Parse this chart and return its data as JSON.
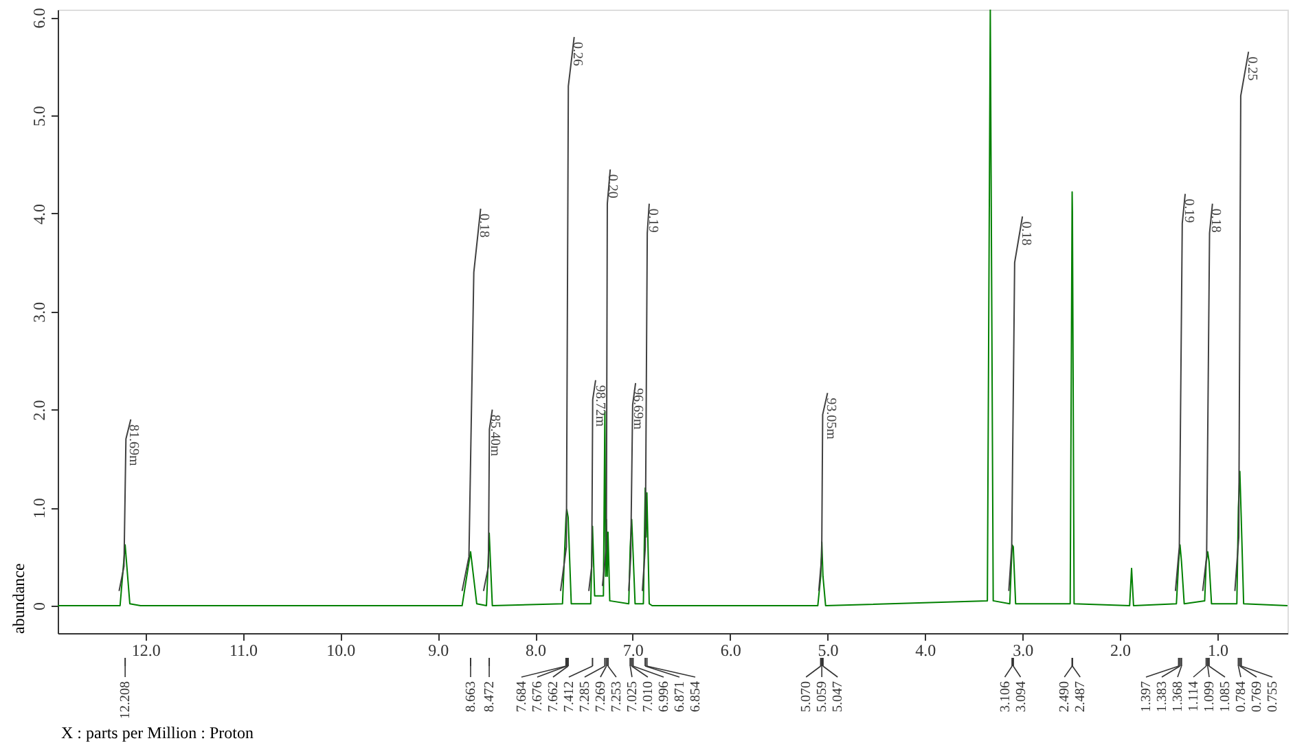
{
  "chart_data": {
    "type": "line",
    "xlabel": "X : parts per Million : Proton",
    "ylabel": "abundance",
    "xlim": [
      12.9,
      0.28
    ],
    "ylim": [
      -0.28,
      6.08
    ],
    "xticks": [
      {
        "value": 12,
        "label": "12.0"
      },
      {
        "value": 11,
        "label": "11.0"
      },
      {
        "value": 10,
        "label": "10.0"
      },
      {
        "value": 9,
        "label": "9.0"
      },
      {
        "value": 8,
        "label": "8.0"
      },
      {
        "value": 7,
        "label": "7.0"
      },
      {
        "value": 6,
        "label": "6.0"
      },
      {
        "value": 5,
        "label": "5.0"
      },
      {
        "value": 4,
        "label": "4.0"
      },
      {
        "value": 3,
        "label": "3.0"
      },
      {
        "value": 2,
        "label": "2.0"
      },
      {
        "value": 1,
        "label": "1.0"
      }
    ],
    "yticks": [
      0,
      {
        "value": 1,
        "label": "1.0"
      },
      {
        "value": 2,
        "label": "2.0"
      },
      {
        "value": 3,
        "label": "3.0"
      },
      {
        "value": 4,
        "label": "4.0"
      },
      {
        "value": 5,
        "label": "5.0"
      },
      {
        "value": 6,
        "label": "6.0"
      }
    ],
    "grid": false,
    "marker": "none",
    "line_style": "solid",
    "series": [
      {
        "color": "#008000",
        "x": [
          12.9,
          12.26,
          12.208,
          12.16,
          12.05,
          8.75,
          8.663,
          8.6,
          8.5,
          8.472,
          8.44,
          7.72,
          7.684,
          7.676,
          7.662,
          7.63,
          7.43,
          7.412,
          7.39,
          7.3,
          7.285,
          7.277,
          7.269,
          7.261,
          7.253,
          7.235,
          7.04,
          7.025,
          7.01,
          6.996,
          6.975,
          6.89,
          6.871,
          6.862,
          6.854,
          6.83,
          6.8,
          5.1,
          5.07,
          5.059,
          5.047,
          5.02,
          3.36,
          3.33,
          3.3,
          3.13,
          3.106,
          3.094,
          3.07,
          2.51,
          2.49,
          2.487,
          2.47,
          1.9,
          1.88,
          1.86,
          1.42,
          1.397,
          1.383,
          1.368,
          1.34,
          1.13,
          1.114,
          1.099,
          1.085,
          1.06,
          0.8,
          0.784,
          0.769,
          0.755,
          0.73,
          0.28
        ],
        "values": [
          0,
          0,
          0.62,
          0.02,
          0,
          0,
          0.55,
          0.02,
          0,
          0.74,
          0,
          0.02,
          0.9,
          0.98,
          0.9,
          0.02,
          0.02,
          0.81,
          0.1,
          0.1,
          1.98,
          0.3,
          0.88,
          0.3,
          0.75,
          0.05,
          0.02,
          0.6,
          0.88,
          0.55,
          0.02,
          0.02,
          1.2,
          0.7,
          1.15,
          0.02,
          0,
          0,
          0.3,
          0.65,
          0.3,
          0,
          0.05,
          6.08,
          0.05,
          0.02,
          0.62,
          0.6,
          0.02,
          0.02,
          4.22,
          4.0,
          0.02,
          0,
          0.38,
          0,
          0.02,
          0.45,
          0.62,
          0.45,
          0.02,
          0.05,
          0.45,
          0.55,
          0.45,
          0.02,
          0.02,
          1.0,
          1.37,
          0.9,
          0.02,
          0
        ]
      },
      {
        "color": "#404040",
        "x": [
          12.27,
          12.22,
          12.2,
          12.15
        ],
        "values": [
          0.15,
          0.4,
          1.7,
          1.9
        ]
      },
      {
        "color": "#404040",
        "x": [
          8.75,
          8.68,
          8.63,
          8.56
        ],
        "values": [
          0.15,
          0.5,
          3.4,
          4.05
        ]
      },
      {
        "color": "#404040",
        "x": [
          8.53,
          8.48,
          8.47,
          8.44
        ],
        "values": [
          0.15,
          0.4,
          1.8,
          2.0
        ]
      },
      {
        "color": "#404040",
        "x": [
          7.74,
          7.68,
          7.66,
          7.6
        ],
        "values": [
          0.15,
          0.6,
          5.3,
          5.8
        ]
      },
      {
        "color": "#404040",
        "x": [
          7.45,
          7.42,
          7.41,
          7.38
        ],
        "values": [
          0.15,
          0.4,
          2.1,
          2.3
        ]
      },
      {
        "color": "#404040",
        "x": [
          7.31,
          7.27,
          7.26,
          7.23
        ],
        "values": [
          0.2,
          0.6,
          4.1,
          4.45
        ]
      },
      {
        "color": "#404040",
        "x": [
          7.04,
          7.02,
          7.0,
          6.97
        ],
        "values": [
          0.15,
          0.5,
          2.05,
          2.27
        ]
      },
      {
        "color": "#404040",
        "x": [
          6.9,
          6.87,
          6.85,
          6.83
        ],
        "values": [
          0.15,
          0.6,
          3.8,
          4.1
        ]
      },
      {
        "color": "#404040",
        "x": [
          5.09,
          5.06,
          5.05,
          5.0
        ],
        "values": [
          0.15,
          0.5,
          1.95,
          2.17
        ]
      },
      {
        "color": "#404040",
        "x": [
          3.14,
          3.11,
          3.08,
          3.0
        ],
        "values": [
          0.15,
          0.6,
          3.5,
          3.97
        ]
      },
      {
        "color": "#404040",
        "x": [
          1.43,
          1.39,
          1.36,
          1.33
        ],
        "values": [
          0.15,
          0.6,
          3.9,
          4.2
        ]
      },
      {
        "color": "#404040",
        "x": [
          1.15,
          1.11,
          1.08,
          1.05
        ],
        "values": [
          0.15,
          0.5,
          3.8,
          4.1
        ]
      },
      {
        "color": "#404040",
        "x": [
          0.82,
          0.78,
          0.76,
          0.68
        ],
        "values": [
          0.15,
          0.7,
          5.2,
          5.65
        ]
      }
    ],
    "annotations": [
      {
        "text": "81.69m",
        "x": 12.12,
        "y": 1.85
      },
      {
        "text": "0.18",
        "x": 8.52,
        "y": 4.0
      },
      {
        "text": "85.40m",
        "x": 8.41,
        "y": 1.95
      },
      {
        "text": "0.26",
        "x": 7.56,
        "y": 5.75
      },
      {
        "text": "98.72m",
        "x": 7.33,
        "y": 2.25
      },
      {
        "text": "0.20",
        "x": 7.2,
        "y": 4.4
      },
      {
        "text": "96.69m",
        "x": 6.94,
        "y": 2.22
      },
      {
        "text": "0.19",
        "x": 6.79,
        "y": 4.05
      },
      {
        "text": "93.05m",
        "x": 4.96,
        "y": 2.12
      },
      {
        "text": "0.18",
        "x": 2.96,
        "y": 3.92
      },
      {
        "text": "0.19",
        "x": 1.29,
        "y": 4.15
      },
      {
        "text": "0.18",
        "x": 1.01,
        "y": 4.05
      },
      {
        "text": "0.25",
        "x": 0.64,
        "y": 5.6
      },
      {
        "text": "12.208",
        "x": 12.208
      },
      {
        "text": "8.663",
        "x": 8.663
      },
      {
        "text": "8.472",
        "x": 8.472
      },
      {
        "text": "7.684",
        "x": 7.684
      },
      {
        "text": "7.676",
        "x": 7.676
      },
      {
        "text": "7.662",
        "x": 7.662
      },
      {
        "text": "7.412",
        "x": 7.412
      },
      {
        "text": "7.285",
        "x": 7.285
      },
      {
        "text": "7.269",
        "x": 7.269
      },
      {
        "text": "7.253",
        "x": 7.253
      },
      {
        "text": "7.025",
        "x": 7.025
      },
      {
        "text": "7.010",
        "x": 7.01
      },
      {
        "text": "6.996",
        "x": 6.996
      },
      {
        "text": "6.871",
        "x": 6.871
      },
      {
        "text": "6.854",
        "x": 6.854
      },
      {
        "text": "5.070",
        "x": 5.07
      },
      {
        "text": "5.059",
        "x": 5.059
      },
      {
        "text": "5.047",
        "x": 5.047
      },
      {
        "text": "3.106",
        "x": 3.106
      },
      {
        "text": "3.094",
        "x": 3.094
      },
      {
        "text": "2.490",
        "x": 2.49
      },
      {
        "text": "2.487",
        "x": 2.487
      },
      {
        "text": "1.397",
        "x": 1.397
      },
      {
        "text": "1.383",
        "x": 1.383
      },
      {
        "text": "1.368",
        "x": 1.368
      },
      {
        "text": "1.114",
        "x": 1.114
      },
      {
        "text": "1.099",
        "x": 1.099
      },
      {
        "text": "1.085",
        "x": 1.085
      },
      {
        "text": "0.784",
        "x": 0.784
      },
      {
        "text": "0.769",
        "x": 0.769
      },
      {
        "text": "0.755",
        "x": 0.755
      }
    ]
  }
}
